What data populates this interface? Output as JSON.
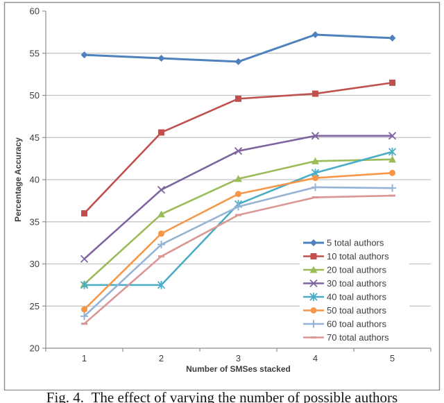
{
  "caption": "Fig. 4.  The effect of varying the number of possible authors",
  "colors": {
    "background": "#ffffff",
    "frame_border": "#909090",
    "gridline": "#c3c3c3",
    "axis": "#8e8e8e",
    "tick_text": "#3d3d3d",
    "legend_text": "#404040"
  },
  "chart_data": {
    "type": "line",
    "title": "",
    "xlabel": "Number of SMSes stacked",
    "ylabel": "Percentage Accuracy",
    "categories": [
      "1",
      "2",
      "3",
      "4",
      "5"
    ],
    "ylim": [
      20,
      60
    ],
    "ytick_step": 5,
    "grid": true,
    "legend_position": "inside-right-bottom",
    "series": [
      {
        "name": "5 total authors",
        "color": "#4F81BD",
        "marker": "diamond",
        "values": [
          54.8,
          54.4,
          54.0,
          57.2,
          56.8
        ]
      },
      {
        "name": "10 total authors",
        "color": "#C0504D",
        "marker": "square",
        "values": [
          36.0,
          45.6,
          49.6,
          50.2,
          51.5
        ]
      },
      {
        "name": "20 toal authors",
        "color": "#9BBB59",
        "marker": "triangle",
        "values": [
          27.6,
          35.9,
          40.1,
          42.2,
          42.4
        ]
      },
      {
        "name": "30 toal authors",
        "color": "#8064A2",
        "marker": "x",
        "values": [
          30.6,
          38.8,
          43.4,
          45.2,
          45.2
        ]
      },
      {
        "name": "40 toal authors",
        "color": "#4BACC6",
        "marker": "star",
        "values": [
          27.5,
          27.5,
          37.1,
          40.8,
          43.3
        ]
      },
      {
        "name": "50 toal authors",
        "color": "#F79646",
        "marker": "circle",
        "values": [
          24.6,
          33.6,
          38.3,
          40.2,
          40.8
        ]
      },
      {
        "name": "60 toal authors",
        "color": "#95B3D7",
        "marker": "plus",
        "values": [
          23.8,
          32.3,
          36.8,
          39.1,
          39.0
        ]
      },
      {
        "name": "70 total authors",
        "color": "#D99694",
        "marker": "dash",
        "values": [
          22.9,
          30.9,
          35.8,
          37.9,
          38.1
        ]
      }
    ]
  }
}
